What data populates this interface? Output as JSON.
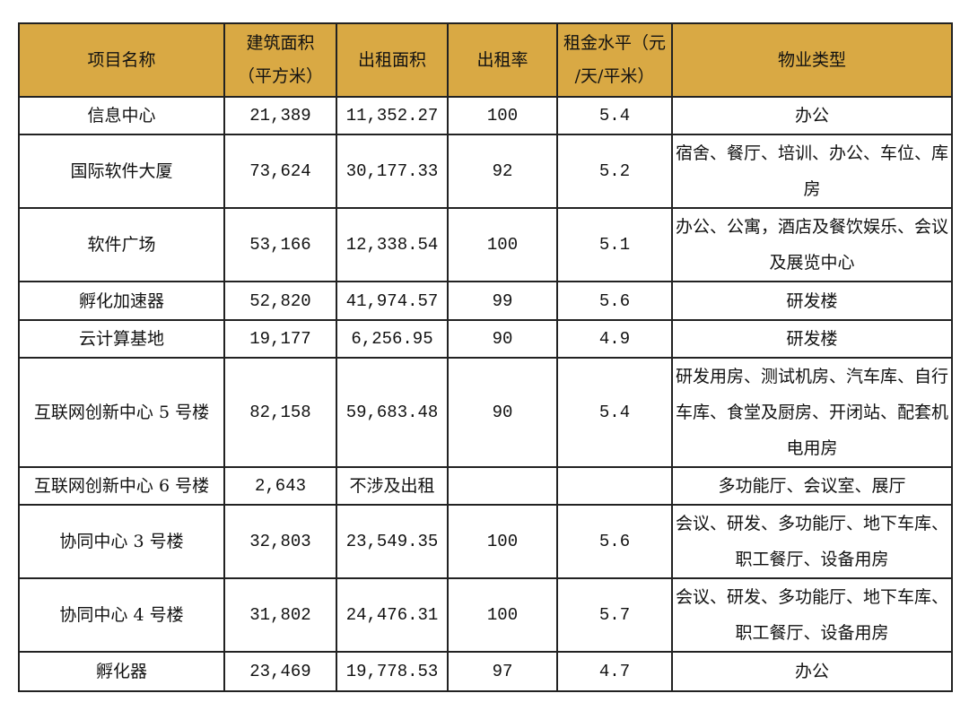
{
  "header_color": "#D9A944",
  "headers": [
    "项目名称",
    "建筑面积（平方米）",
    "出租面积",
    "出租率",
    "租金水平（元/天/平米）",
    "物业类型"
  ],
  "header_lines": {
    "building_area": [
      "建筑面积",
      "（平方米）"
    ],
    "rent_level": [
      "租金水平（元",
      "/天/平米）"
    ]
  },
  "rows": [
    {
      "name": "信息中心",
      "building_area": "21,389",
      "leased_area": "11,352.27",
      "occupancy": "100",
      "rent": "5.4",
      "type": "办公"
    },
    {
      "name": "国际软件大厦",
      "building_area": "73,624",
      "leased_area": "30,177.33",
      "occupancy": "92",
      "rent": "5.2",
      "type": "宿舍、餐厅、培训、办公、车位、库房"
    },
    {
      "name": "软件广场",
      "building_area": "53,166",
      "leased_area": "12,338.54",
      "occupancy": "100",
      "rent": "5.1",
      "type": "办公、公寓，酒店及餐饮娱乐、会议及展览中心"
    },
    {
      "name": "孵化加速器",
      "building_area": "52,820",
      "leased_area": "41,974.57",
      "occupancy": "99",
      "rent": "5.6",
      "type": "研发楼"
    },
    {
      "name": "云计算基地",
      "building_area": "19,177",
      "leased_area": "6,256.95",
      "occupancy": "90",
      "rent": "4.9",
      "type": "研发楼"
    },
    {
      "name": "互联网创新中心 5 号楼",
      "building_area": "82,158",
      "leased_area": "59,683.48",
      "occupancy": "90",
      "rent": "5.4",
      "type": "研发用房、测试机房、汽车库、自行车库、食堂及厨房、开闭站、配套机电用房"
    },
    {
      "name": "互联网创新中心 6 号楼",
      "building_area": "2,643",
      "leased_area": "不涉及出租",
      "occupancy": "",
      "rent": "",
      "type": "多功能厅、会议室、展厅"
    },
    {
      "name": "协同中心 3 号楼",
      "building_area": "32,803",
      "leased_area": "23,549.35",
      "occupancy": "100",
      "rent": "5.6",
      "type": "会议、研发、多功能厅、地下车库、职工餐厅、设备用房"
    },
    {
      "name": "协同中心 4 号楼",
      "building_area": "31,802",
      "leased_area": "24,476.31",
      "occupancy": "100",
      "rent": "5.7",
      "type": "会议、研发、多功能厅、地下车库、职工餐厅、设备用房"
    },
    {
      "name": "孵化器",
      "building_area": "23,469",
      "leased_area": "19,778.53",
      "occupancy": "97",
      "rent": "4.7",
      "type": "办公"
    }
  ]
}
